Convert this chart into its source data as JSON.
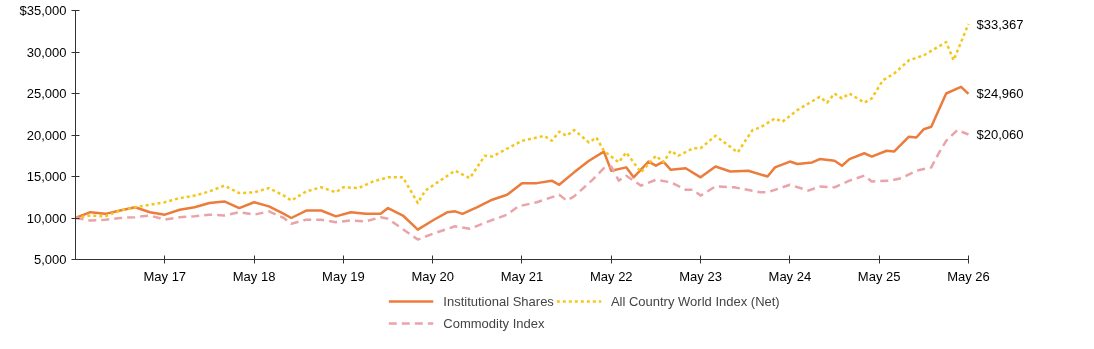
{
  "chart_data": {
    "type": "line",
    "legend": "bottom",
    "grid": false,
    "xlim": [
      "2016-05",
      "2026-05"
    ],
    "xticks": [
      {
        "value": "2017-05",
        "label": "May 17"
      },
      {
        "value": "2018-05",
        "label": "May 18"
      },
      {
        "value": "2019-05",
        "label": "May 19"
      },
      {
        "value": "2020-05",
        "label": "May 20"
      },
      {
        "value": "2021-05",
        "label": "May 21"
      },
      {
        "value": "2022-05",
        "label": "May 22"
      },
      {
        "value": "2023-05",
        "label": "May 23"
      },
      {
        "value": "2024-05",
        "label": "May 24"
      },
      {
        "value": "2025-05",
        "label": "May 25"
      },
      {
        "value": "2026-05",
        "label": "May 26"
      }
    ],
    "ylim": [
      5000,
      35000
    ],
    "yticks": [
      {
        "value": 5000,
        "label": "5,000"
      },
      {
        "value": 10000,
        "label": "10,000"
      },
      {
        "value": 15000,
        "label": "15,000"
      },
      {
        "value": 20000,
        "label": "20,000"
      },
      {
        "value": 25000,
        "label": "25,000"
      },
      {
        "value": 30000,
        "label": "30,000"
      },
      {
        "value": 35000,
        "label": "$35,000"
      }
    ],
    "series": [
      {
        "name": "Institutional Shares",
        "color": "#ec7c3c",
        "line_style": "solid",
        "value_labels": [
          null,
          null,
          null,
          null,
          null,
          null,
          null,
          null,
          null,
          null,
          null,
          null,
          null,
          null,
          null,
          null,
          null,
          null,
          null,
          null,
          null,
          null,
          null,
          null,
          null,
          null,
          null,
          null,
          null,
          null,
          null,
          null,
          null,
          null,
          null,
          null,
          null,
          null,
          null,
          null,
          null,
          null,
          null,
          null,
          null,
          null,
          null,
          null,
          null,
          null,
          null,
          null,
          null,
          null,
          null,
          null,
          null,
          null,
          null,
          null,
          null,
          null,
          null,
          null,
          null,
          null,
          null,
          null,
          null,
          null,
          "$24,960"
        ],
        "x": [
          "2016-05",
          "2016-07",
          "2016-09",
          "2016-11",
          "2017-01",
          "2017-03",
          "2017-05",
          "2017-07",
          "2017-09",
          "2017-11",
          "2018-01",
          "2018-03",
          "2018-05",
          "2018-07",
          "2018-09",
          "2018-10",
          "2018-12",
          "2019-02",
          "2019-04",
          "2019-06",
          "2019-08",
          "2019-10",
          "2019-11",
          "2020-01",
          "2020-03",
          "2020-05",
          "2020-07",
          "2020-08",
          "2020-09",
          "2020-11",
          "2021-01",
          "2021-03",
          "2021-05",
          "2021-07",
          "2021-09",
          "2021-10",
          "2021-12",
          "2022-02",
          "2022-04",
          "2022-05",
          "2022-07",
          "2022-08",
          "2022-10",
          "2022-11",
          "2022-12",
          "2023-01",
          "2023-03",
          "2023-05",
          "2023-07",
          "2023-09",
          "2023-11-13",
          "2024-02",
          "2024-03",
          "2024-05",
          "2024-06",
          "2024-08",
          "2024-09",
          "2024-11",
          "2024-12",
          "2025-01",
          "2025-03",
          "2025-04",
          "2025-06",
          "2025-07",
          "2025-09",
          "2025-10",
          "2025-11",
          "2025-12",
          "2026-02",
          "2026-04",
          "2026-05"
        ],
        "values": [
          10000,
          10700,
          10500,
          10900,
          11300,
          10700,
          10400,
          11000,
          11300,
          11800,
          12000,
          11200,
          11900,
          11400,
          10500,
          10000,
          10900,
          10900,
          10200,
          10700,
          10500,
          10500,
          11200,
          10300,
          8600,
          9700,
          10700,
          10800,
          10500,
          11300,
          12200,
          12800,
          14200,
          14200,
          14500,
          14000,
          15500,
          16900,
          18000,
          15700,
          16100,
          14900,
          16800,
          16300,
          16800,
          15800,
          16000,
          14900,
          16200,
          15600,
          15700,
          15000,
          16100,
          16800,
          16500,
          16700,
          17100,
          16900,
          16300,
          17100,
          17800,
          17400,
          18100,
          18000,
          19800,
          19700,
          20700,
          21000,
          25000,
          25800,
          24960
        ]
      },
      {
        "name": "All Country World Index (Net)",
        "color": "#f5c61a",
        "line_style": "dotted",
        "value_labels": [
          null,
          null,
          null,
          null,
          null,
          null,
          null,
          null,
          null,
          null,
          null,
          null,
          null,
          null,
          null,
          null,
          null,
          null,
          null,
          null,
          null,
          null,
          null,
          null,
          null,
          null,
          null,
          null,
          null,
          null,
          null,
          null,
          null,
          null,
          null,
          null,
          null,
          null,
          null,
          null,
          null,
          null,
          null,
          null,
          null,
          null,
          null,
          null,
          null,
          null,
          null,
          null,
          null,
          null,
          null,
          null,
          null,
          null,
          null,
          null,
          null,
          null,
          null,
          null,
          null,
          null,
          null,
          null,
          null,
          null,
          "$33,367"
        ],
        "x": [
          "2016-05",
          "2016-07",
          "2016-09",
          "2016-11",
          "2017-01",
          "2017-03",
          "2017-05",
          "2017-07",
          "2017-09",
          "2017-11",
          "2018-01",
          "2018-03",
          "2018-05",
          "2018-07",
          "2018-09",
          "2018-10",
          "2018-12",
          "2019-02",
          "2019-04",
          "2019-05",
          "2019-07",
          "2019-09",
          "2019-11",
          "2020-01",
          "2020-03",
          "2020-04",
          "2020-08",
          "2020-10",
          "2020-12",
          "2021-01",
          "2021-05",
          "2021-08",
          "2021-09",
          "2021-10",
          "2021-11",
          "2021-12",
          "2022-02",
          "2022-03",
          "2022-04",
          "2022-06",
          "2022-07",
          "2022-09",
          "2022-11",
          "2022-12",
          "2023-01",
          "2023-02",
          "2023-04",
          "2023-05",
          "2023-07",
          "2023-10",
          "2023-11",
          "2023-12",
          "2024-01",
          "2024-03",
          "2024-04",
          "2024-06",
          "2024-07-16",
          "2024-09",
          "2024-10",
          "2024-11",
          "2024-12",
          "2025-01",
          "2025-03",
          "2025-04",
          "2025-05-16",
          "2025-07",
          "2025-09",
          "2025-11",
          "2026-02",
          "2026-03",
          "2026-05"
        ],
        "values": [
          10000,
          10300,
          10200,
          10900,
          11300,
          11600,
          11900,
          12400,
          12700,
          13200,
          13900,
          13000,
          13100,
          13600,
          12700,
          12100,
          13200,
          13700,
          13100,
          13700,
          13600,
          14400,
          14900,
          14900,
          11800,
          13300,
          15700,
          14800,
          17500,
          17400,
          19300,
          19900,
          19300,
          20400,
          19900,
          20600,
          19100,
          19700,
          18100,
          16700,
          17900,
          15500,
          17500,
          16700,
          18100,
          17500,
          18400,
          18400,
          19900,
          17900,
          19300,
          20600,
          20900,
          22000,
          21600,
          23000,
          23800,
          24600,
          23900,
          25000,
          24400,
          25000,
          23900,
          24400,
          26600,
          27400,
          29000,
          29600,
          31200,
          29000,
          33367
        ]
      },
      {
        "name": "Commodity Index",
        "color": "#eaa3a8",
        "line_style": "dashed",
        "value_labels": [
          null,
          null,
          null,
          null,
          null,
          null,
          null,
          null,
          null,
          null,
          null,
          null,
          null,
          null,
          null,
          null,
          null,
          null,
          null,
          null,
          null,
          null,
          null,
          null,
          null,
          null,
          null,
          null,
          null,
          null,
          null,
          null,
          null,
          null,
          null,
          null,
          null,
          null,
          null,
          null,
          null,
          null,
          null,
          null,
          null,
          null,
          null,
          null,
          null,
          null,
          null,
          null,
          null,
          null,
          null,
          null,
          null,
          null,
          null,
          null,
          null,
          null,
          null,
          "$20,060"
        ],
        "x": [
          "2016-05",
          "2016-07",
          "2016-09",
          "2016-11",
          "2017-01",
          "2017-03",
          "2017-05",
          "2017-07",
          "2017-09",
          "2017-11",
          "2018-01",
          "2018-03",
          "2018-05",
          "2018-07",
          "2018-09",
          "2018-10",
          "2018-12",
          "2019-02",
          "2019-04",
          "2019-06",
          "2019-08",
          "2019-10",
          "2019-11",
          "2020-03",
          "2020-05",
          "2020-08",
          "2020-10",
          "2020-12-16",
          "2021-03",
          "2021-04-16",
          "2021-07",
          "2021-10",
          "2021-11",
          "2021-12",
          "2022-02-15",
          "2022-04",
          "2022-05",
          "2022-06",
          "2022-07",
          "2022-09",
          "2022-11",
          "2023-01",
          "2023-03",
          "2023-04",
          "2023-05",
          "2023-07",
          "2023-09-16",
          "2024-01",
          "2024-02",
          "2024-05",
          "2024-07-16",
          "2024-09",
          "2024-11",
          "2025-01",
          "2025-03",
          "2025-04",
          "2025-06-16",
          "2025-08",
          "2025-10",
          "2025-12",
          "2026-01",
          "2026-02",
          "2026-03-16",
          "2026-05"
        ],
        "values": [
          10000,
          9700,
          9800,
          10000,
          10100,
          10300,
          9800,
          10100,
          10200,
          10400,
          10300,
          10700,
          10400,
          10800,
          10000,
          9300,
          9800,
          9800,
          9500,
          9700,
          9600,
          10100,
          9900,
          7400,
          8100,
          9000,
          8700,
          9600,
          10400,
          11400,
          11900,
          12800,
          12100,
          12600,
          14600,
          16000,
          16200,
          14500,
          15100,
          13900,
          14600,
          14300,
          13400,
          13400,
          12700,
          13800,
          13700,
          13100,
          13100,
          14000,
          13300,
          13800,
          13700,
          14500,
          15100,
          14400,
          14500,
          14800,
          15700,
          16100,
          17800,
          19300,
          20600,
          20060
        ]
      }
    ]
  }
}
